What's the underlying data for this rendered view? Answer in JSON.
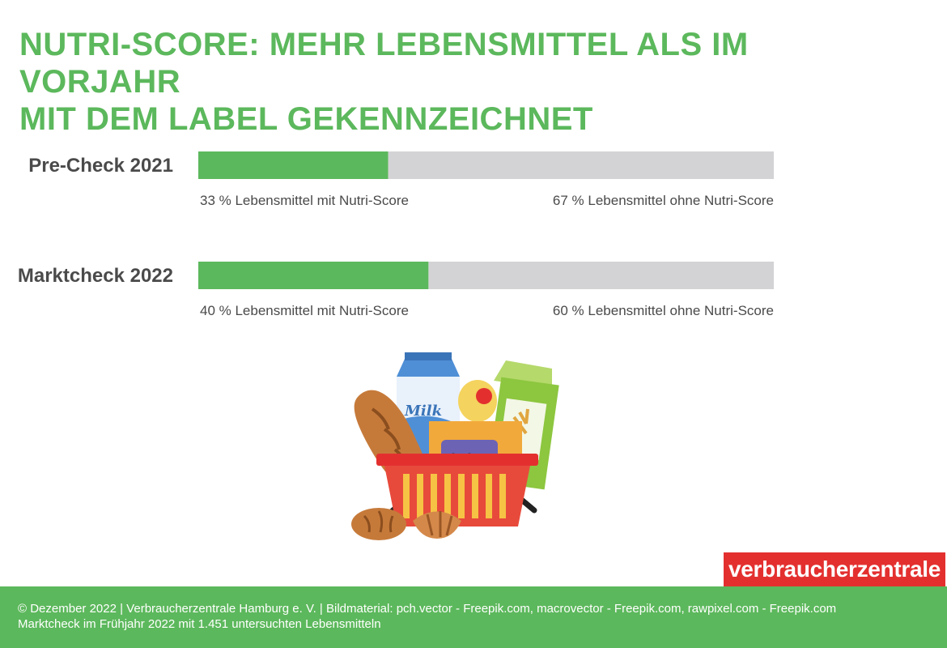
{
  "title": {
    "line1": "NUTRI-SCORE: MEHR LEBENSMITTEL ALS IM VORJAHR",
    "line2": "MIT DEM LABEL GEKENNZEICHNET"
  },
  "chart_data": {
    "type": "bar",
    "stacked": true,
    "orientation": "horizontal",
    "categories": [
      "Pre-Check 2021",
      "Marktcheck 2022"
    ],
    "series": [
      {
        "name": "Lebensmittel mit Nutri-Score",
        "values": [
          33,
          40
        ],
        "color": "#5cb85c"
      },
      {
        "name": "Lebensmittel ohne Nutri-Score",
        "values": [
          67,
          60
        ],
        "color": "#d3d3d5"
      }
    ],
    "segment_labels": [
      [
        "33 % Lebensmittel mit Nutri-Score",
        "67 % Lebensmittel ohne Nutri-Score"
      ],
      [
        "40 % Lebensmittel mit Nutri-Score",
        "60 % Lebensmittel ohne Nutri-Score"
      ]
    ],
    "xlim": [
      0,
      100
    ],
    "grid": false
  },
  "illustration": {
    "milk_label": "Milk"
  },
  "brand": "verbraucherzentrale",
  "footer": {
    "line1": "© Dezember 2022 | Verbraucherzentrale Hamburg e. V. | Bildmaterial: pch.vector - Freepik.com, macrovector - Freepik.com, rawpixel.com - Freepik.com",
    "line2": "Marktcheck im Frühjahr 2022 mit 1.451 untersuchten Lebensmitteln"
  },
  "colors": {
    "accent_green": "#5cb85c",
    "bar_grey": "#d3d3d5",
    "brand_red": "#e3302f"
  }
}
